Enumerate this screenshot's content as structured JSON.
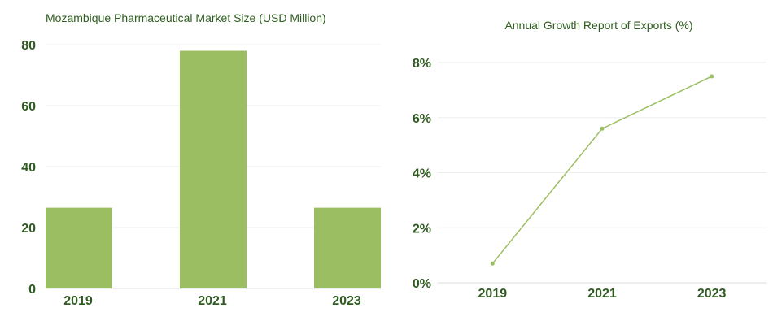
{
  "chart_data": [
    {
      "type": "bar",
      "title": "Mozambique Pharmaceutical Market Size (USD Million)",
      "categories": [
        "2019",
        "2021",
        "2023"
      ],
      "values": [
        26.5,
        78,
        26.5
      ],
      "ylim": [
        0,
        80
      ],
      "yticks": [
        "0",
        "20",
        "40",
        "60",
        "80"
      ],
      "grid": true,
      "color": "#9bbe63"
    },
    {
      "type": "line",
      "title": "Annual Growth Report of Exports (%)",
      "categories": [
        "2019",
        "2021",
        "2023"
      ],
      "values": [
        0.7,
        5.6,
        7.5
      ],
      "ylim": [
        0,
        8
      ],
      "yticks": [
        "0%",
        "2%",
        "4%",
        "6%",
        "8%"
      ],
      "grid": true,
      "color": "#9bbe63"
    }
  ]
}
